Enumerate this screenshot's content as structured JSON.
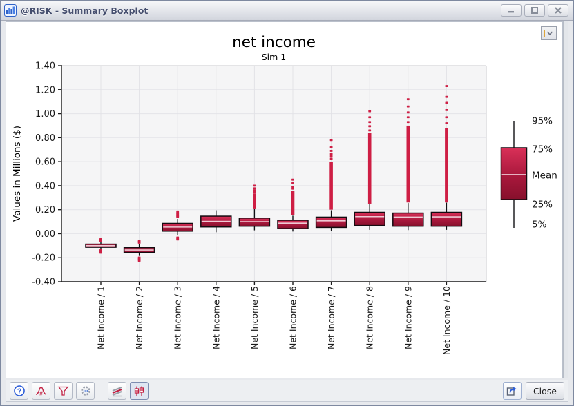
{
  "window": {
    "title": "@RISK - Summary Boxplot",
    "controls": [
      "minimize",
      "maximize",
      "close"
    ]
  },
  "icons": {
    "app": "bar-chart",
    "help_glyph": "?",
    "toolbar": [
      "help",
      "distribution-fit",
      "filter",
      "settings",
      "overlay-graph",
      "boxplot"
    ],
    "export": "export-arrow",
    "dropdown": "chevron-down"
  },
  "legend": {
    "entries": [
      "95%",
      "75%",
      "Mean",
      "25%",
      "5%"
    ]
  },
  "toolbar": {
    "close_label": "Close"
  },
  "chart_data": {
    "type": "boxplot",
    "title": "net income",
    "subtitle": "Sim 1",
    "ylabel": "Values in Millions ($)",
    "ylim": [
      -0.4,
      1.4
    ],
    "ytick_step": 0.2,
    "ytick_labels": [
      "1.40",
      "1.20",
      "1.00",
      "0.80",
      "0.60",
      "0.40",
      "0.20",
      "0.00",
      "-0.20",
      "-0.40"
    ],
    "grid": true,
    "categories": [
      "Net Income / 1",
      "Net Income / 2",
      "Net Income / 3",
      "Net Income / 4",
      "Net Income / 5",
      "Net Income / 6",
      "Net Income / 7",
      "Net Income / 8",
      "Net Income / 9",
      "Net Income / 10"
    ],
    "series": [
      {
        "label": "Net Income / 1",
        "p5": -0.125,
        "p25": -0.113,
        "mean": -0.1,
        "p75": -0.087,
        "p95": -0.072,
        "outliers_below": [
          -0.158,
          -0.15,
          -0.143,
          -0.137
        ],
        "outliers_above": [
          -0.062,
          -0.056,
          -0.05,
          -0.045
        ],
        "streak_above": null
      },
      {
        "label": "Net Income / 2",
        "p5": -0.185,
        "p25": -0.157,
        "mean": -0.136,
        "p75": -0.116,
        "p95": -0.088,
        "outliers_below": [
          -0.225,
          -0.215,
          -0.207,
          -0.199
        ],
        "outliers_above": [
          -0.075,
          -0.068,
          -0.062
        ],
        "streak_above": null
      },
      {
        "label": "Net Income / 3",
        "p5": -0.012,
        "p25": 0.021,
        "mean": 0.055,
        "p75": 0.086,
        "p95": 0.123,
        "outliers_below": [
          -0.048,
          -0.04,
          -0.032
        ],
        "outliers_above": [
          0.138,
          0.146,
          0.154,
          0.163,
          0.172,
          0.185
        ],
        "streak_above": null
      },
      {
        "label": "Net Income / 4",
        "p5": 0.012,
        "p25": 0.056,
        "mean": 0.103,
        "p75": 0.146,
        "p95": 0.195,
        "outliers_below": [],
        "outliers_above": [],
        "streak_above": null
      },
      {
        "label": "Net Income / 5",
        "p5": 0.028,
        "p25": 0.062,
        "mean": 0.1,
        "p75": 0.13,
        "p95": 0.205,
        "outliers_below": [],
        "outliers_above": [
          0.35,
          0.362,
          0.378,
          0.4
        ],
        "streak_above": [
          0.21,
          0.335
        ]
      },
      {
        "label": "Net Income / 6",
        "p5": 0.018,
        "p25": 0.042,
        "mean": 0.088,
        "p75": 0.112,
        "p95": 0.15,
        "outliers_below": [],
        "outliers_above": [
          0.375,
          0.39,
          0.42,
          0.45
        ],
        "streak_above": [
          0.155,
          0.355
        ]
      },
      {
        "label": "Net Income / 7",
        "p5": 0.022,
        "p25": 0.052,
        "mean": 0.107,
        "p75": 0.138,
        "p95": 0.195,
        "outliers_below": [],
        "outliers_above": [
          0.625,
          0.645,
          0.665,
          0.69,
          0.72,
          0.78
        ],
        "streak_above": [
          0.2,
          0.6
        ]
      },
      {
        "label": "Net Income / 8",
        "p5": 0.032,
        "p25": 0.068,
        "mean": 0.142,
        "p75": 0.178,
        "p95": 0.245,
        "outliers_below": [],
        "outliers_above": [
          0.86,
          0.895,
          0.93,
          0.97,
          1.02
        ],
        "streak_above": [
          0.25,
          0.84
        ]
      },
      {
        "label": "Net Income / 9",
        "p5": 0.03,
        "p25": 0.062,
        "mean": 0.138,
        "p75": 0.172,
        "p95": 0.255,
        "outliers_below": [],
        "outliers_above": [
          0.93,
          0.97,
          1.01,
          1.06,
          1.12
        ],
        "streak_above": [
          0.26,
          0.9
        ]
      },
      {
        "label": "Net Income / 10",
        "p5": 0.032,
        "p25": 0.062,
        "mean": 0.14,
        "p75": 0.178,
        "p95": 0.258,
        "outliers_below": [],
        "outliers_above": [
          0.92,
          0.97,
          1.03,
          1.09,
          1.14,
          1.23
        ],
        "streak_above": [
          0.26,
          0.88
        ]
      }
    ],
    "colors": {
      "box_fill_top": "#d93058",
      "box_fill_bottom": "#87102c",
      "box_border": "#140b10",
      "mean_line": "#efc9d4",
      "outlier": "#ce1e44",
      "plot_bg": "#f5f5f6",
      "grid": "#e6e6ea",
      "axis": "#1a1a1a"
    }
  }
}
